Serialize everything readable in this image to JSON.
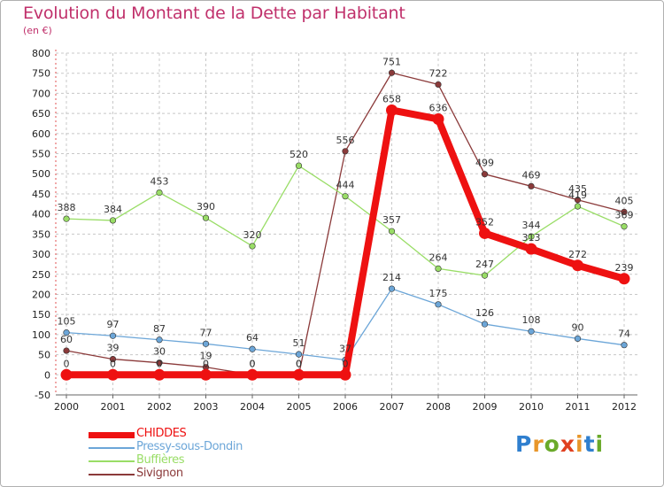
{
  "title": "Evolution du Montant de la Dette par Habitant",
  "subtitle": "(en €)",
  "logo": {
    "letters": [
      "P",
      "r",
      "o",
      "x",
      "i",
      "t",
      "i"
    ],
    "colors": [
      "#2f7fcf",
      "#e8962a",
      "#6aaa2a",
      "#e04020",
      "#e8962a",
      "#2f7fcf",
      "#6aaa2a"
    ]
  },
  "chart_data": {
    "type": "line",
    "categories": [
      "2000",
      "2001",
      "2002",
      "2003",
      "2004",
      "2005",
      "2006",
      "2007",
      "2008",
      "2009",
      "2010",
      "2011",
      "2012"
    ],
    "ylim": [
      -50,
      800
    ],
    "yticks": [
      "-50",
      "0",
      "50",
      "100",
      "150",
      "200",
      "250",
      "300",
      "350",
      "400",
      "450",
      "500",
      "550",
      "600",
      "650",
      "700",
      "750",
      "800"
    ],
    "grid": "dashed",
    "legend": "bottom-left",
    "series": [
      {
        "name": "CHIDDES",
        "color": "#ee1111",
        "values": [
          0,
          0,
          0,
          0,
          0,
          0,
          0,
          658,
          636,
          352,
          313,
          272,
          239
        ],
        "labels": [
          "0",
          "0",
          "0",
          "0",
          "0",
          "0",
          "0",
          "658",
          "636",
          "352",
          "313",
          "272",
          "239"
        ]
      },
      {
        "name": "Pressy-sous-Dondin",
        "color": "#6ca6d8",
        "values": [
          105,
          97,
          87,
          77,
          64,
          51,
          37,
          214,
          175,
          126,
          108,
          90,
          74
        ],
        "labels": [
          "105",
          "97",
          "87",
          "77",
          "64",
          "51",
          "37",
          "214",
          "175",
          "126",
          "108",
          "90",
          "74"
        ]
      },
      {
        "name": "Buffières",
        "color": "#99dd66",
        "values": [
          388,
          384,
          453,
          390,
          320,
          520,
          444,
          357,
          264,
          247,
          344,
          419,
          369
        ],
        "labels": [
          "388",
          "384",
          "453",
          "390",
          "320",
          "520",
          "444",
          "357",
          "264",
          "247",
          "344",
          "419",
          "369"
        ]
      },
      {
        "name": "Sivignon",
        "color": "#8b3a3a",
        "values": [
          60,
          39,
          30,
          19,
          0,
          0,
          556,
          751,
          722,
          499,
          469,
          435,
          405
        ],
        "labels": [
          "60",
          "39",
          "30",
          "19",
          "0",
          "0",
          "556",
          "751",
          "722",
          "499",
          "469",
          "435",
          "405"
        ]
      }
    ]
  }
}
